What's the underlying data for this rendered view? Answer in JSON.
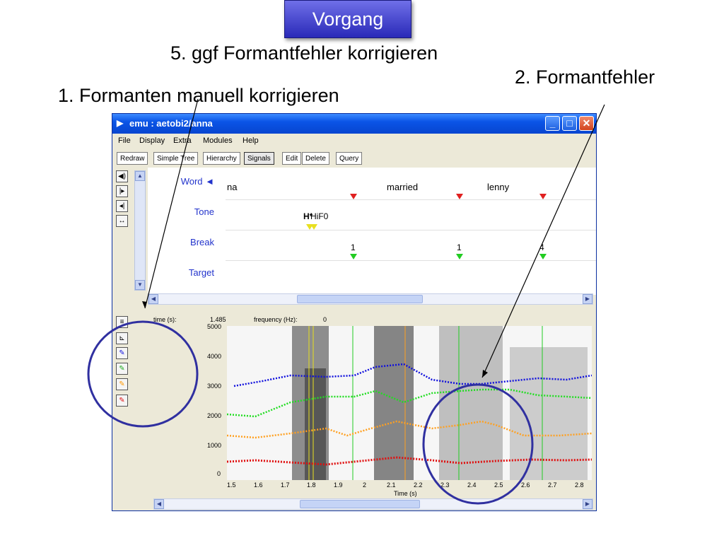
{
  "slide": {
    "title": "Vorgang",
    "annotations": {
      "step5": "5. ggf Formantfehler korrigieren",
      "step2": "2. Formantfehler",
      "step1": "1. Formanten manuell korrigieren"
    }
  },
  "window": {
    "title": "emu : aetobi2/anna",
    "menu": [
      "File",
      "Display",
      "Extra",
      "Modules",
      "Help"
    ],
    "toolbar": [
      "Redraw",
      "Simple Tree",
      "Hierarchy",
      "Signals",
      "Edit",
      "Delete",
      "Query"
    ],
    "active_tool": "Signals"
  },
  "tiers": {
    "labels": [
      "Word ◄",
      "Tone",
      "Break",
      "Target"
    ],
    "words": [
      {
        "text": "na"
      },
      {
        "text": "married"
      },
      {
        "text": "lenny"
      }
    ],
    "tone_label": "H*",
    "tone_label2": "HiF0",
    "breaks": [
      "1",
      "1",
      "4"
    ]
  },
  "signal": {
    "time_label": "time (s):",
    "time_value": "1.485",
    "freq_label": "frequency (Hz):",
    "freq_value": "0",
    "x_axis_label": "Time (s)",
    "x_ticks": [
      "1.5",
      "1.6",
      "1.7",
      "1.8",
      "1.9",
      "2",
      "2.1",
      "2.2",
      "2.3",
      "2.4",
      "2.5",
      "2.6",
      "2.7",
      "2.8"
    ],
    "y_ticks": [
      "5000",
      "4000",
      "3000",
      "2000",
      "1000",
      "0"
    ]
  },
  "colors": {
    "f1": "#e01010",
    "f2": "#ffa020",
    "f3": "#22dd22",
    "f4": "#1010dd",
    "highlight": "#3030a0"
  }
}
